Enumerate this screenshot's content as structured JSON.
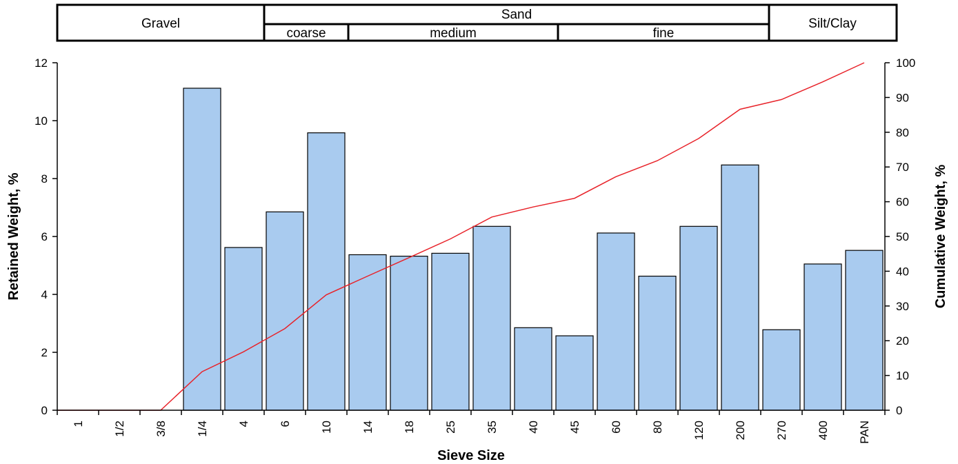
{
  "header": {
    "gravel": "Gravel",
    "sand": "Sand",
    "coarse": "coarse",
    "medium": "medium",
    "fine": "fine",
    "silt_clay": "Silt/Clay"
  },
  "colors": {
    "bar_fill": "#A9CBEF",
    "bar_stroke": "#000000",
    "line": "#E8232A",
    "axis": "#000000"
  },
  "chart_data": {
    "type": "bar",
    "title": "",
    "xlabel": "Sieve Size",
    "ylabel": "Retained Weight, %",
    "y2label": "Cumulative Weight, %",
    "ylim": [
      0,
      12
    ],
    "y2lim": [
      0,
      100
    ],
    "yticks": [
      0,
      2,
      4,
      6,
      8,
      10,
      12
    ],
    "y2ticks": [
      0,
      10,
      20,
      30,
      40,
      50,
      60,
      70,
      80,
      90,
      100
    ],
    "grid": false,
    "categories": [
      "1",
      "1/2",
      "3/8",
      "1/4",
      "4",
      "6",
      "10",
      "14",
      "18",
      "25",
      "35",
      "40",
      "45",
      "60",
      "80",
      "120",
      "200",
      "270",
      "400",
      "PAN"
    ],
    "series": [
      {
        "name": "Retained Weight, %",
        "kind": "bar",
        "axis": "left",
        "values": [
          0,
          0,
          0,
          11.12,
          5.62,
          6.85,
          9.58,
          5.37,
          5.32,
          5.42,
          6.35,
          2.85,
          2.57,
          6.12,
          4.63,
          6.35,
          8.47,
          2.78,
          5.05,
          5.52
        ]
      },
      {
        "name": "Cumulative Weight, %",
        "kind": "line",
        "axis": "right",
        "values": [
          0,
          0,
          0,
          11.1,
          16.8,
          23.5,
          33.2,
          38.6,
          43.9,
          49.3,
          55.6,
          58.5,
          61.0,
          67.2,
          71.8,
          78.2,
          86.6,
          89.4,
          94.5,
          100
        ]
      }
    ]
  }
}
